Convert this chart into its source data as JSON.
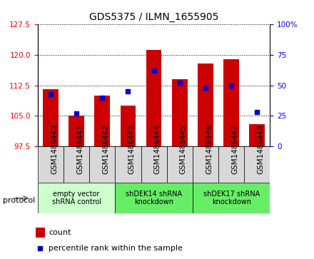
{
  "title": "GDS5375 / ILMN_1655905",
  "samples": [
    "GSM1486440",
    "GSM1486441",
    "GSM1486442",
    "GSM1486443",
    "GSM1486444",
    "GSM1486445",
    "GSM1486446",
    "GSM1486447",
    "GSM1486448"
  ],
  "counts": [
    111.5,
    105.0,
    110.0,
    107.5,
    121.2,
    114.0,
    118.0,
    119.0,
    103.0
  ],
  "percentiles": [
    43,
    27,
    40,
    45,
    62,
    52,
    48,
    50,
    28
  ],
  "ylim_left": [
    97.5,
    127.5
  ],
  "ylim_right": [
    0,
    100
  ],
  "yticks_left": [
    97.5,
    105,
    112.5,
    120,
    127.5
  ],
  "yticks_right": [
    0,
    25,
    50,
    75,
    100
  ],
  "bar_color": "#cc0000",
  "scatter_color": "#0000cc",
  "bar_baseline": 97.5,
  "groups": [
    {
      "label": "empty vector\nshRNA control",
      "start": 0,
      "end": 3,
      "color": "#ccffcc"
    },
    {
      "label": "shDEK14 shRNA\nknockdown",
      "start": 3,
      "end": 6,
      "color": "#66ee66"
    },
    {
      "label": "shDEK17 shRNA\nknockdown",
      "start": 6,
      "end": 9,
      "color": "#66ee66"
    }
  ],
  "protocol_label": "protocol",
  "legend_count_label": "count",
  "legend_pct_label": "percentile rank within the sample",
  "plot_bg_color": "#ffffff",
  "xtick_bg_color": "#d8d8d8",
  "title_fontsize": 10,
  "tick_fontsize": 7.5,
  "label_fontsize": 8
}
